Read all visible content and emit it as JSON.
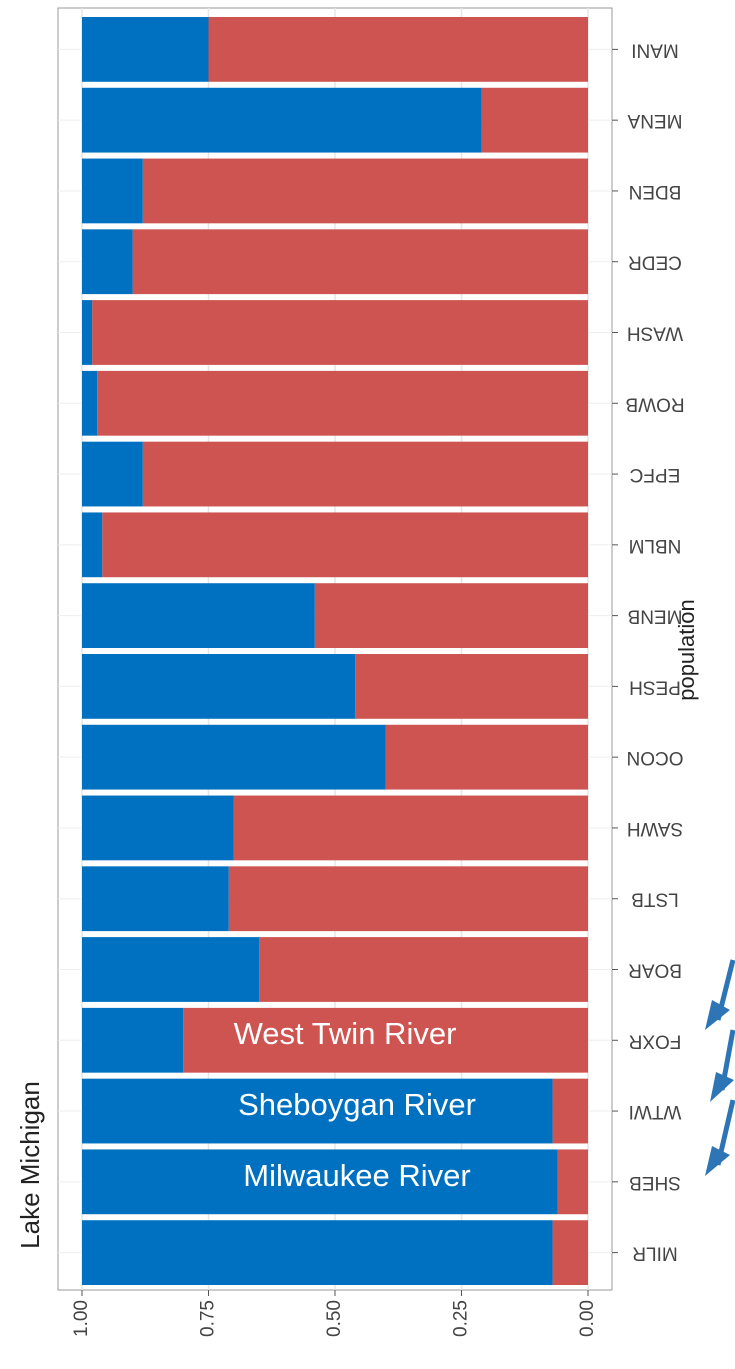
{
  "chart_data": {
    "type": "bar",
    "orientation": "horizontal",
    "stacked": true,
    "categories": [
      "MANI",
      "MENA",
      "BDEN",
      "CEDR",
      "WASH",
      "ROWB",
      "EPFC",
      "NBLM",
      "MENB",
      "PESH",
      "OCON",
      "SAWH",
      "LSTB",
      "BOAR",
      "FOXR",
      "WTWI",
      "SHEB",
      "MILR"
    ],
    "series": [
      {
        "color": "#cd5450",
        "values": [
          0.75,
          0.21,
          0.88,
          0.9,
          0.98,
          0.97,
          0.88,
          0.96,
          0.54,
          0.46,
          0.4,
          0.7,
          0.71,
          0.65,
          0.8,
          0.07,
          0.06,
          0.07
        ]
      },
      {
        "color": "#0070c0",
        "values": [
          0.25,
          0.79,
          0.12,
          0.1,
          0.02,
          0.03,
          0.12,
          0.04,
          0.46,
          0.54,
          0.6,
          0.3,
          0.29,
          0.35,
          0.2,
          0.93,
          0.94,
          0.93
        ]
      }
    ],
    "xlim": [
      0,
      1.0
    ],
    "xreverse": true,
    "xticks": [
      {
        "value": 1,
        "label": "1.00"
      },
      {
        "value": 0.75,
        "label": "0.75"
      },
      {
        "value": 0.5,
        "label": "0.50"
      },
      {
        "value": 0.25,
        "label": "0.25"
      },
      {
        "value": 0,
        "label": "0.00"
      }
    ],
    "y_label": "population",
    "grid": true,
    "annotations": [
      "West Twin River",
      "Sheboygan River",
      "Milwaukee River",
      "Lake Michigan"
    ]
  }
}
